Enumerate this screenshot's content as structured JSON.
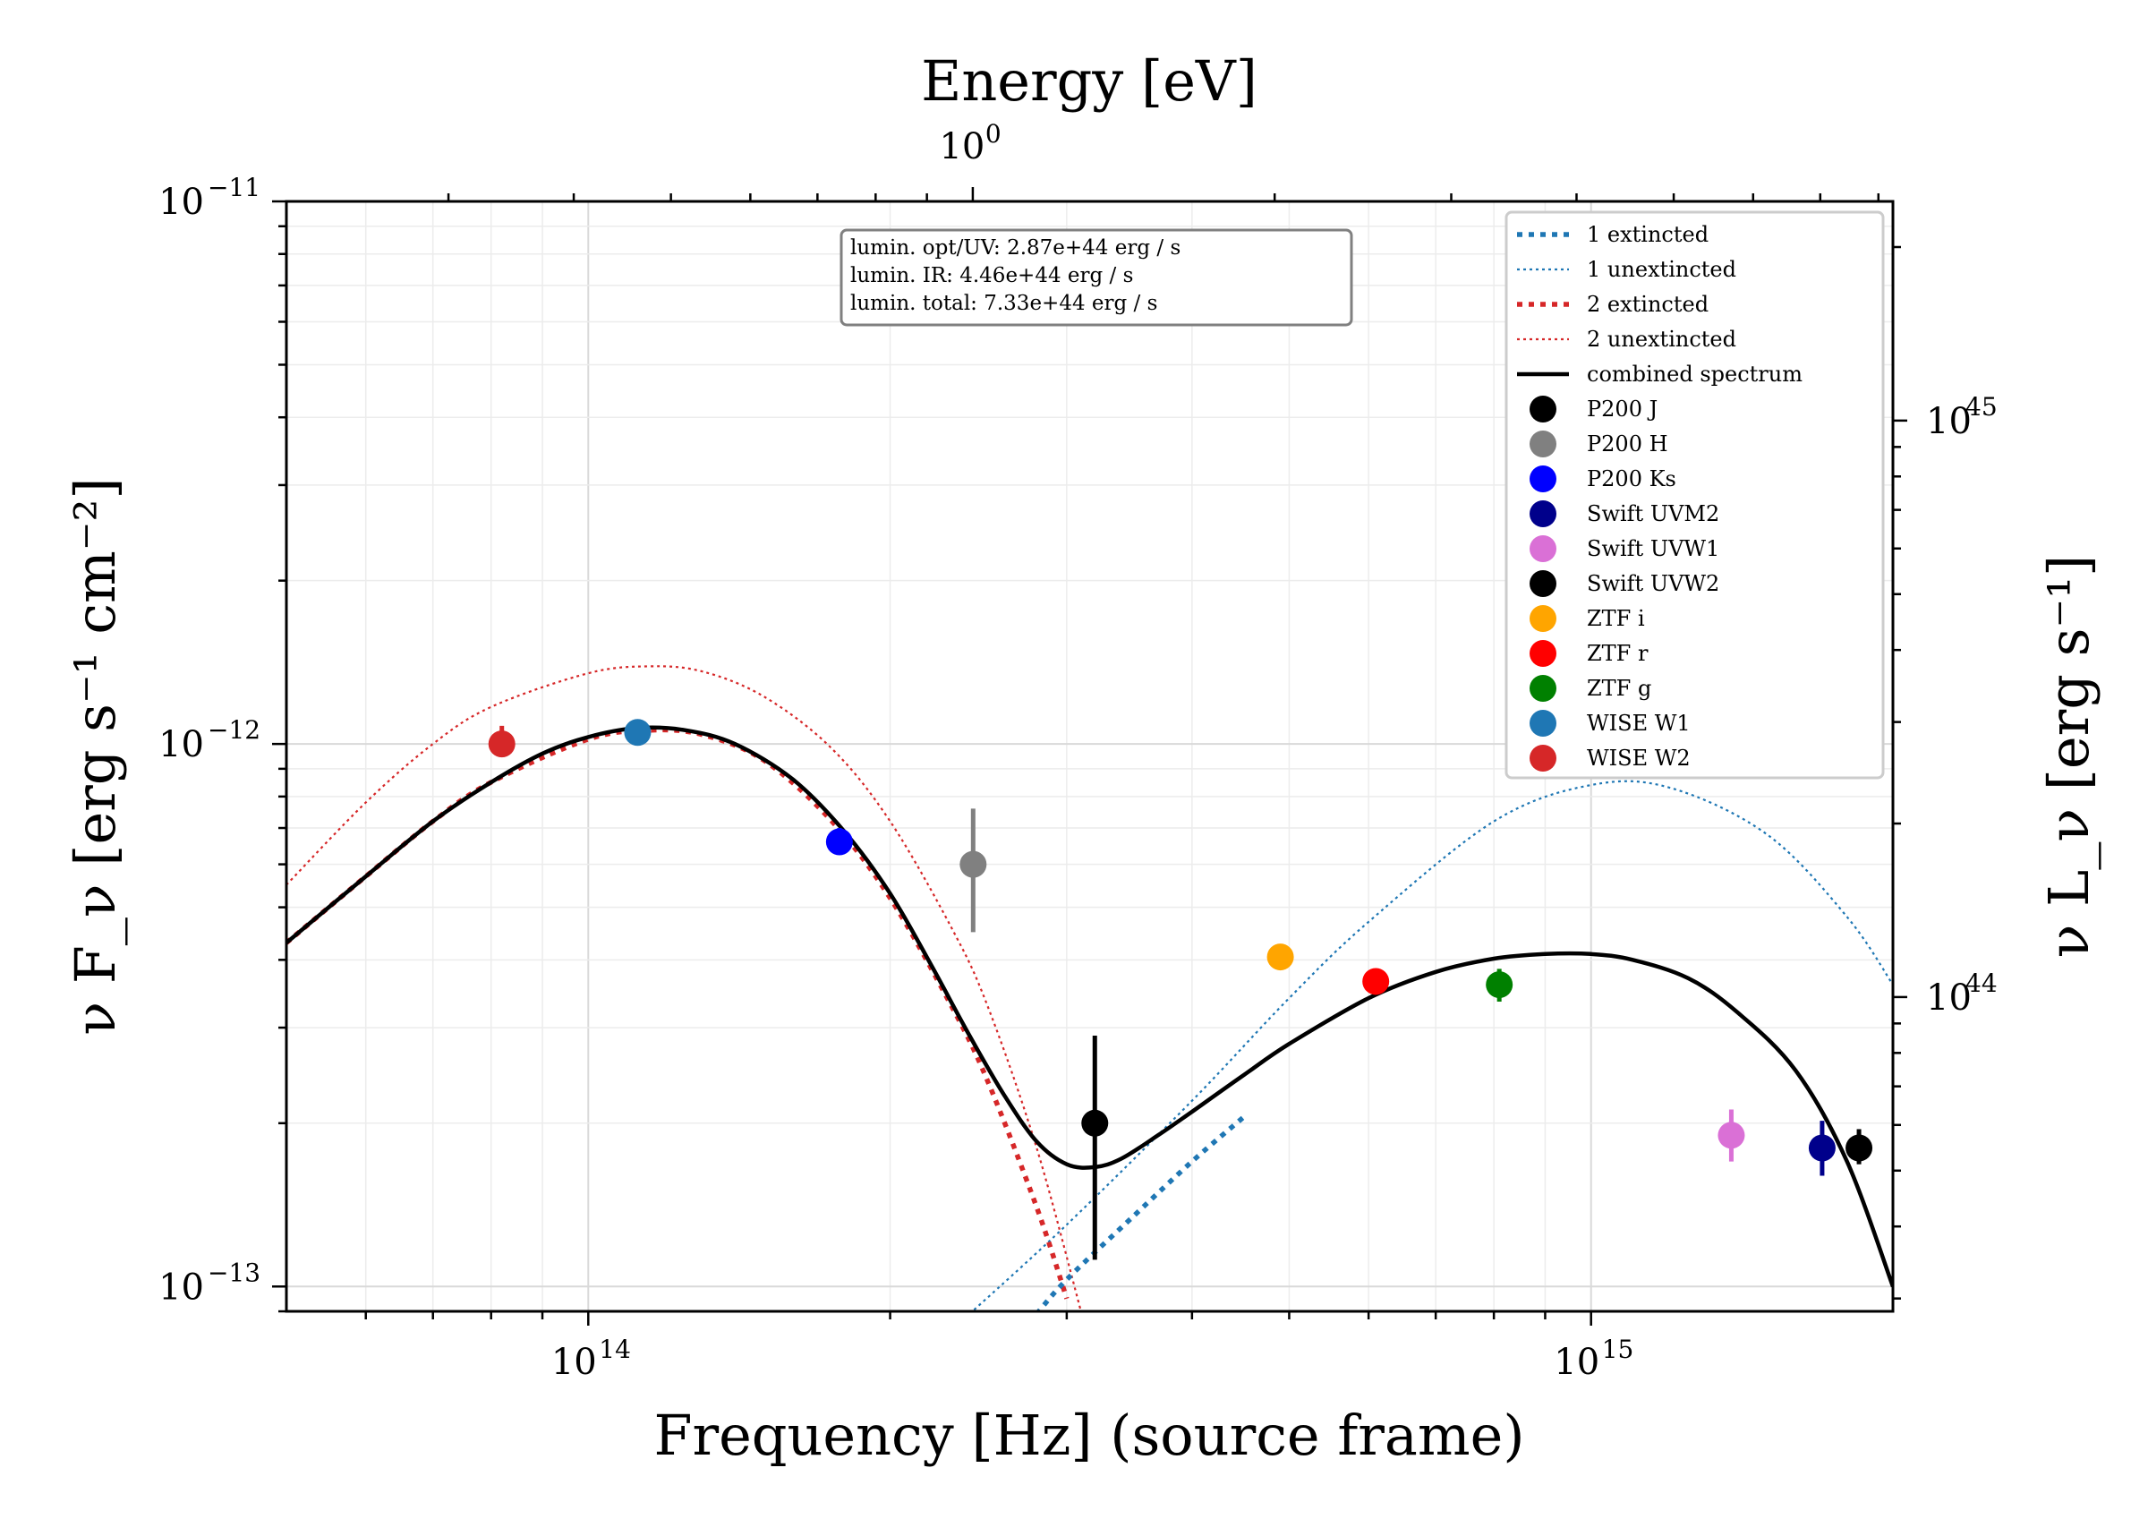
{
  "chart_data": {
    "type": "scatter",
    "title": "",
    "xlabel": "Frequency [Hz] (source frame)",
    "ylabel": "ν F_ν [erg s⁻¹ cm⁻²]",
    "ylabel_right": "ν L_ν [erg s⁻¹]",
    "xlabel_top": "Energy [eV]",
    "x_scale": "log",
    "y_scale": "log",
    "xlim": [
      50000000000000.0,
      2000000000000000.0
    ],
    "ylim": [
      9e-14,
      1e-11
    ],
    "x_ticks": [
      {
        "base": "10",
        "exp": "14",
        "value": 100000000000000.0
      },
      {
        "base": "10",
        "exp": "15",
        "value": 1000000000000000.0
      }
    ],
    "y_ticks": [
      {
        "base": "10",
        "exp": "−11",
        "value": 1e-11
      },
      {
        "base": "10",
        "exp": "−12",
        "value": 1e-12
      },
      {
        "base": "10",
        "exp": "−13",
        "value": 1e-13
      }
    ],
    "top_ticks": [
      {
        "base": "10",
        "exp": "0",
        "value_hz": 241800000000000.0
      }
    ],
    "right_ticks": [
      {
        "base": "10",
        "exp": "45",
        "value": 1e+45
      },
      {
        "base": "10",
        "exp": "44",
        "value": 1e+44
      }
    ],
    "right_ylim": [
      2.85e+43,
      2.4e+45
    ],
    "grid": true,
    "legend_position": "top-right",
    "annotation_box": {
      "lines": [
        "lumin. opt/UV: 2.87e+44 erg / s",
        "lumin. IR: 4.46e+44 erg / s",
        "lumin. total: 7.33e+44 erg / s"
      ]
    },
    "lines": [
      {
        "name": "1 extincted",
        "style": "dotted-thick",
        "color": "#1f77b4",
        "x": [
          280000000000000.0,
          300000000000000.0,
          350000000000000.0,
          400000000000000.0,
          450000000000000.0
        ],
        "y": [
          8.9e-14,
          1.03e-13,
          1.35e-13,
          1.7e-13,
          2.05e-13
        ]
      },
      {
        "name": "1 unextincted",
        "style": "dotted-thin",
        "color": "#1f77b4",
        "x": [
          240000000000000.0,
          300000000000000.0,
          400000000000000.0,
          500000000000000.0,
          600000000000000.0,
          800000000000000.0,
          1000000000000000.0,
          1200000000000000.0,
          1500000000000000.0,
          1800000000000000.0,
          2000000000000000.0
        ],
        "y": [
          8.9e-14,
          1.3e-13,
          2.2e-13,
          3.4e-13,
          4.7e-13,
          7.2e-13,
          8.4e-13,
          8.3e-13,
          6.8e-13,
          4.8e-13,
          3.6e-13
        ]
      },
      {
        "name": "2 extincted",
        "style": "dotted-thick",
        "color": "#d62728",
        "x": [
          50000000000000.0,
          60000000000000.0,
          70000000000000.0,
          80000000000000.0,
          100000000000000.0,
          115000000000000.0,
          130000000000000.0,
          150000000000000.0,
          175000000000000.0,
          200000000000000.0,
          230000000000000.0,
          250000000000000.0,
          280000000000000.0,
          300000000000000.0
        ],
        "y": [
          4.3e-13,
          5.7e-13,
          7.2e-13,
          8.5e-13,
          1.02e-12,
          1.06e-12,
          1.04e-12,
          9.3e-13,
          7.2e-13,
          5.2e-13,
          3.3e-13,
          2.4e-13,
          1.4e-13,
          9.5e-14
        ]
      },
      {
        "name": "2 unextincted",
        "style": "dotted-thin",
        "color": "#d62728",
        "x": [
          50000000000000.0,
          60000000000000.0,
          70000000000000.0,
          80000000000000.0,
          100000000000000.0,
          115000000000000.0,
          130000000000000.0,
          150000000000000.0,
          175000000000000.0,
          200000000000000.0,
          230000000000000.0,
          250000000000000.0,
          280000000000000.0,
          310000000000000.0
        ],
        "y": [
          5.5e-13,
          7.8e-13,
          1e-12,
          1.17e-12,
          1.35e-12,
          1.39e-12,
          1.36e-12,
          1.22e-12,
          9.8e-13,
          7.2e-13,
          4.6e-13,
          3.3e-13,
          1.8e-13,
          9e-14
        ]
      },
      {
        "name": "combined spectrum",
        "style": "solid",
        "color": "#000000",
        "x": [
          50000000000000.0,
          60000000000000.0,
          70000000000000.0,
          80000000000000.0,
          90000000000000.0,
          100000000000000.0,
          112000000000000.0,
          125000000000000.0,
          140000000000000.0,
          160000000000000.0,
          180000000000000.0,
          200000000000000.0,
          220000000000000.0,
          240000000000000.0,
          260000000000000.0,
          280000000000000.0,
          300000000000000.0,
          320000000000000.0,
          340000000000000.0,
          370000000000000.0,
          400000000000000.0,
          450000000000000.0,
          500000000000000.0,
          600000000000000.0,
          700000000000000.0,
          800000000000000.0,
          900000000000000.0,
          1000000000000000.0,
          1100000000000000.0,
          1250000000000000.0,
          1400000000000000.0,
          1600000000000000.0,
          1800000000000000.0,
          2000000000000000.0
        ],
        "y": [
          4.3e-13,
          5.7e-13,
          7.2e-13,
          8.5e-13,
          9.6e-13,
          1.03e-12,
          1.07e-12,
          1.06e-12,
          1e-12,
          8.6e-13,
          6.9e-13,
          5.3e-13,
          3.9e-13,
          2.9e-13,
          2.25e-13,
          1.85e-13,
          1.68e-13,
          1.66e-13,
          1.72e-13,
          1.9e-13,
          2.1e-13,
          2.45e-13,
          2.8e-13,
          3.4e-13,
          3.8e-13,
          4.02e-13,
          4.1e-13,
          4.1e-13,
          4e-13,
          3.7e-13,
          3.2e-13,
          2.5e-13,
          1.7e-13,
          1e-13
        ]
      }
    ],
    "points": [
      {
        "name": "P200 J",
        "color": "#000000",
        "x": 320000000000000.0,
        "y": 2e-13,
        "ylo": 1.12e-13,
        "yhi": 2.9e-13
      },
      {
        "name": "P200 H",
        "color": "#808080",
        "x": 242000000000000.0,
        "y": 6e-13,
        "ylo": 4.5e-13,
        "yhi": 7.6e-13
      },
      {
        "name": "P200 Ks",
        "color": "#0000ff",
        "x": 178000000000000.0,
        "y": 6.6e-13,
        "ylo": 6.25e-13,
        "yhi": 7e-13
      },
      {
        "name": "Swift UVM2",
        "color": "#00008b",
        "x": 1700000000000000.0,
        "y": 1.8e-13,
        "ylo": 1.6e-13,
        "yhi": 2.02e-13
      },
      {
        "name": "Swift UVW1",
        "color": "#da70d6",
        "x": 1380000000000000.0,
        "y": 1.9e-13,
        "ylo": 1.7e-13,
        "yhi": 2.12e-13
      },
      {
        "name": "Swift UVW2",
        "color": "#000000",
        "x": 1850000000000000.0,
        "y": 1.8e-13,
        "ylo": 1.68e-13,
        "yhi": 1.95e-13
      },
      {
        "name": "ZTF i",
        "color": "#ffa500",
        "x": 490000000000000.0,
        "y": 4.05e-13,
        "ylo": 3.95e-13,
        "yhi": 4.15e-13
      },
      {
        "name": "ZTF r",
        "color": "#ff0000",
        "x": 610000000000000.0,
        "y": 3.65e-13,
        "ylo": 3.55e-13,
        "yhi": 3.75e-13
      },
      {
        "name": "ZTF g",
        "color": "#008000",
        "x": 810000000000000.0,
        "y": 3.6e-13,
        "ylo": 3.35e-13,
        "yhi": 3.85e-13
      },
      {
        "name": "WISE W1",
        "color": "#1f77b4",
        "x": 112000000000000.0,
        "y": 1.05e-12,
        "ylo": 1e-12,
        "yhi": 1.1e-12
      },
      {
        "name": "WISE W2",
        "color": "#d62728",
        "x": 82000000000000.0,
        "y": 1e-12,
        "ylo": 9.5e-13,
        "yhi": 1.08e-12
      }
    ]
  }
}
